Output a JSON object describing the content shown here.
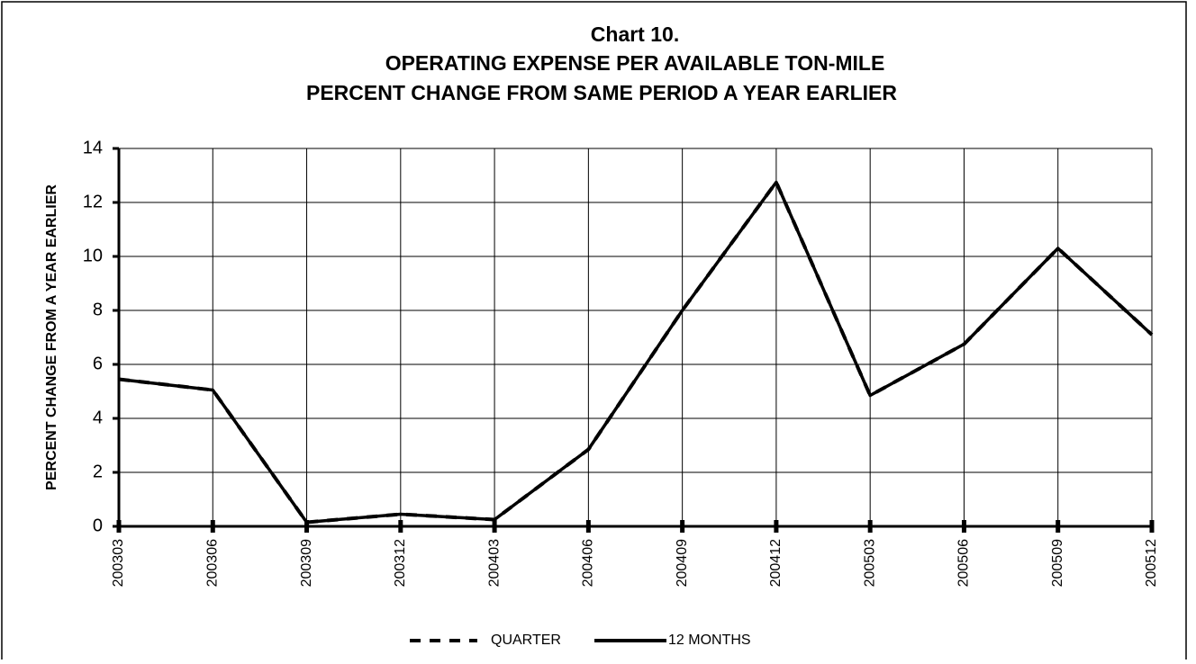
{
  "chart_data": {
    "type": "line",
    "title": [
      "Chart 10.",
      "OPERATING EXPENSE PER AVAILABLE TON-MILE",
      "PERCENT CHANGE FROM SAME PERIOD A YEAR EARLIER"
    ],
    "y_label": "PERCENT CHANGE FROM A YEAR EARLIER",
    "categories": [
      "200303",
      "200306",
      "200309",
      "200312",
      "200403",
      "200406",
      "200409",
      "200412",
      "200503",
      "200506",
      "200509",
      "200512"
    ],
    "series": [
      {
        "name": "QUARTER",
        "color": "#000000",
        "dash": true,
        "values": [
          5.45,
          5.05,
          0.15,
          0.45,
          0.25,
          2.85,
          8.0,
          12.75,
          4.85,
          6.75,
          10.3,
          7.1
        ]
      },
      {
        "name": "12 MONTHS",
        "color": "#000000",
        "dash": false,
        "values": [
          5.45,
          5.05,
          0.15,
          0.45,
          0.25,
          2.85,
          8.0,
          12.75,
          4.85,
          6.75,
          10.3,
          7.1
        ]
      }
    ],
    "ylim": [
      0,
      14
    ],
    "yticks": [
      0,
      2,
      4,
      6,
      8,
      10,
      12,
      14
    ],
    "grid": true,
    "legend": "bottom"
  }
}
